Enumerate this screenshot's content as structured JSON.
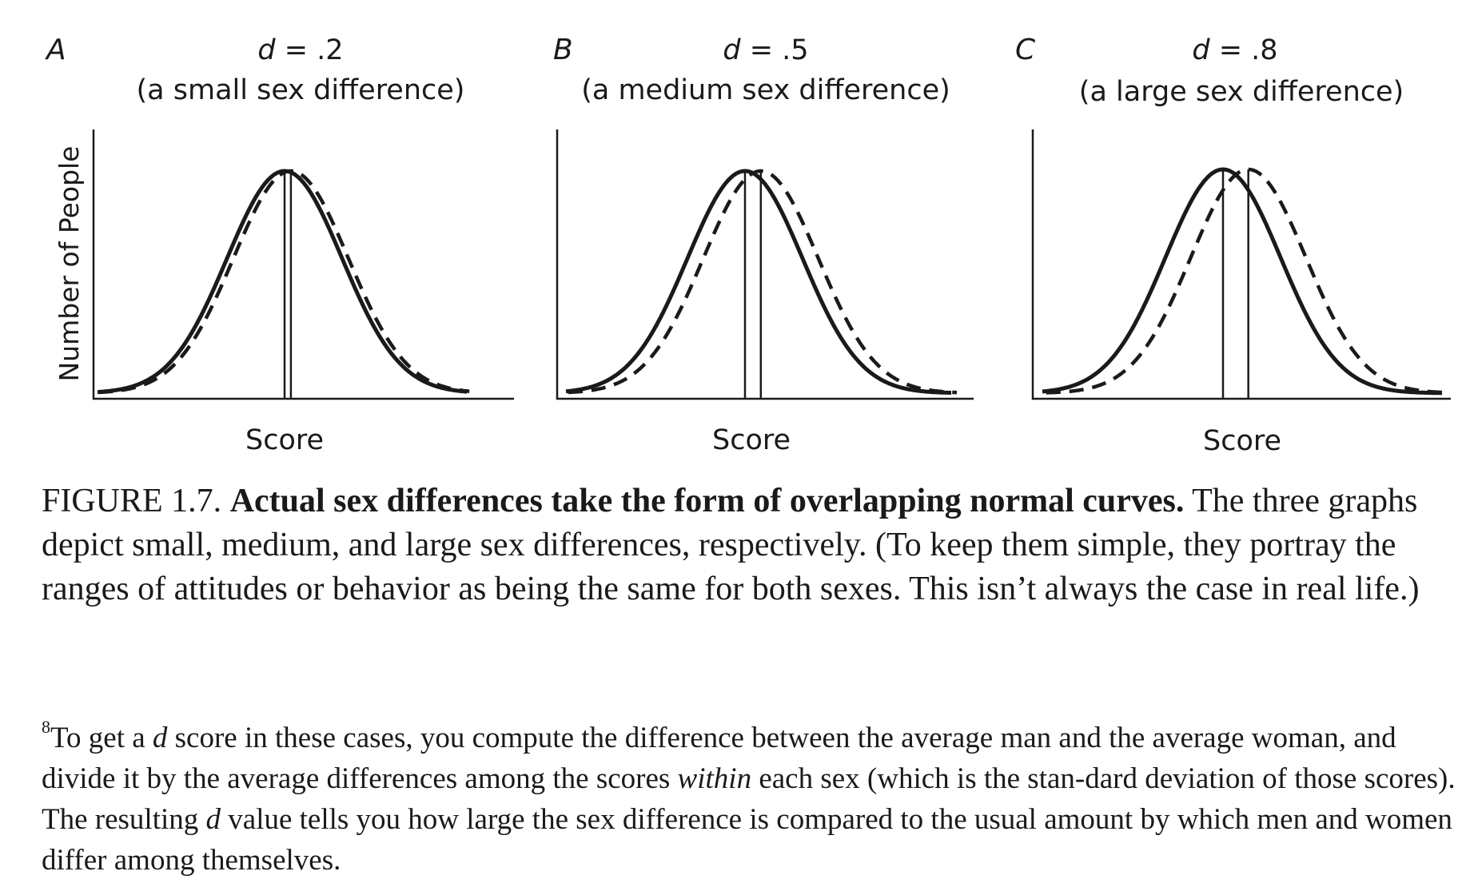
{
  "figure": {
    "ylabel": "Number of People",
    "panels": [
      {
        "letter": "A",
        "d_symbol": "d",
        "d_value": " = .2",
        "subtitle": "(a small sex difference)",
        "xlabel": "Score"
      },
      {
        "letter": "B",
        "d_symbol": "d",
        "d_value": " = .5",
        "subtitle": "(a medium sex difference)",
        "xlabel": "Score"
      },
      {
        "letter": "C",
        "d_symbol": "d",
        "d_value": " = .8",
        "subtitle": "(a large sex difference)",
        "xlabel": "Score"
      }
    ]
  },
  "chart_data": [
    {
      "type": "line",
      "title": "d = .2 (a small sex difference)",
      "xlabel": "Score",
      "ylabel": "Number of People",
      "series": [
        {
          "style": "solid",
          "distribution": "normal",
          "mean": 0,
          "sd": 1
        },
        {
          "style": "dashed",
          "distribution": "normal",
          "mean": 0.2,
          "sd": 1
        }
      ]
    },
    {
      "type": "line",
      "title": "d = .5 (a medium sex difference)",
      "xlabel": "Score",
      "ylabel": "",
      "series": [
        {
          "style": "solid",
          "distribution": "normal",
          "mean": 0,
          "sd": 1
        },
        {
          "style": "dashed",
          "distribution": "normal",
          "mean": 0.5,
          "sd": 1
        }
      ]
    },
    {
      "type": "line",
      "title": "d = .8 (a large sex difference)",
      "xlabel": "Score",
      "ylabel": "",
      "series": [
        {
          "style": "solid",
          "distribution": "normal",
          "mean": 0,
          "sd": 1
        },
        {
          "style": "dashed",
          "distribution": "normal",
          "mean": 0.8,
          "sd": 1
        }
      ]
    }
  ],
  "caption": {
    "label": "FIGURE 1.7.",
    "bold": "Actual sex differences take the form of overlapping normal curves.",
    "text": " The three graphs depict small, medium, and large sex differences, respectively. (To keep them simple, they portray the ranges of attitudes or behavior as being the same for both sexes. This isn’t always the case in real life.)"
  },
  "footnote": {
    "marker": "8",
    "part1": "To get a ",
    "d": "d",
    "part2": " score in these cases, you compute the difference between the average man and the average woman, and divide it by the average differences among the scores ",
    "within": "within",
    "part3": " each sex (which is the stan-dard deviation of those scores). The resulting ",
    "d2": "d",
    "part4": " value tells you how large the sex difference is compared to the usual amount by which men and women differ among themselves."
  }
}
